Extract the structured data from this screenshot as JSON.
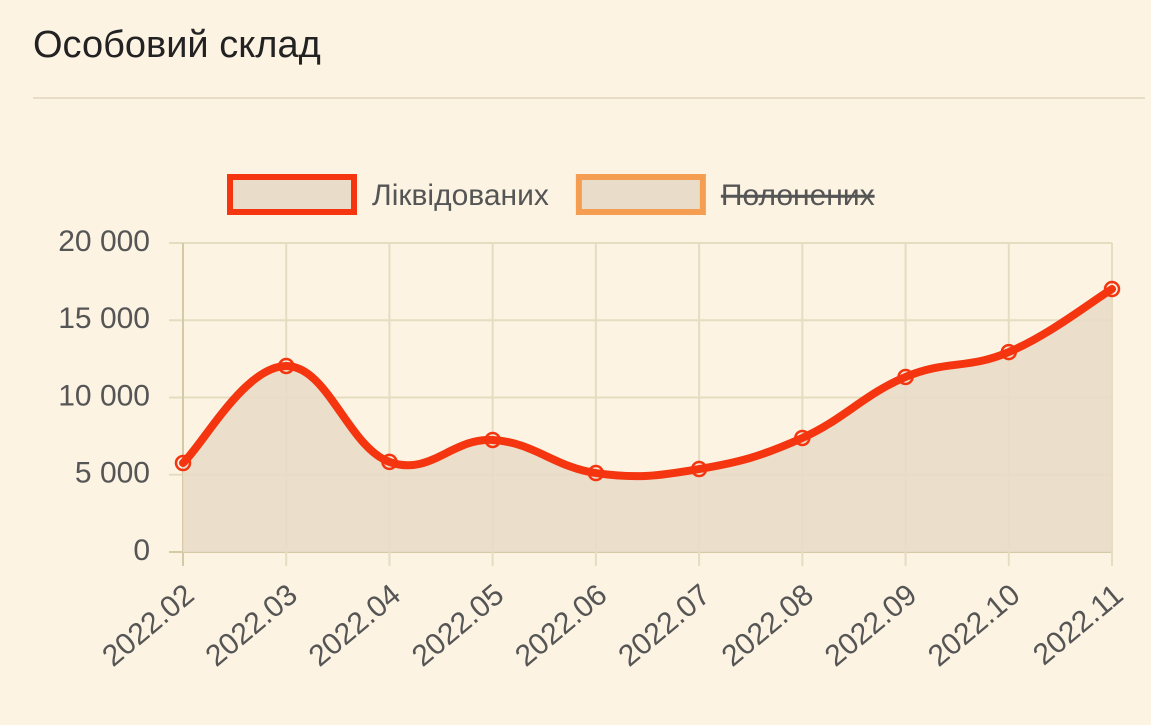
{
  "title": "Особовий склад",
  "chart_data": {
    "type": "line",
    "categories": [
      "2022.02",
      "2022.03",
      "2022.04",
      "2022.05",
      "2022.06",
      "2022.07",
      "2022.08",
      "2022.09",
      "2022.10",
      "2022.11"
    ],
    "series": [
      {
        "name": "Ліквідованих",
        "color": "#f4350f",
        "fill": "#e9dcc8",
        "values": [
          5760,
          12040,
          5830,
          7250,
          5110,
          5370,
          7380,
          11330,
          12940,
          17020
        ]
      },
      {
        "name": "Полонених",
        "color": "#f59e52",
        "fill": "#e9dcc8",
        "hidden": true,
        "values": [
          null,
          null,
          null,
          null,
          null,
          null,
          null,
          null,
          null,
          null
        ]
      }
    ],
    "ylim": [
      0,
      20000
    ],
    "yticks": [
      0,
      {
        "value": 5000,
        "label": "5 000"
      },
      {
        "value": 10000,
        "label": "10 000"
      },
      {
        "value": 15000,
        "label": "15 000"
      },
      {
        "value": 20000,
        "label": "20 000"
      }
    ],
    "grid": true
  }
}
